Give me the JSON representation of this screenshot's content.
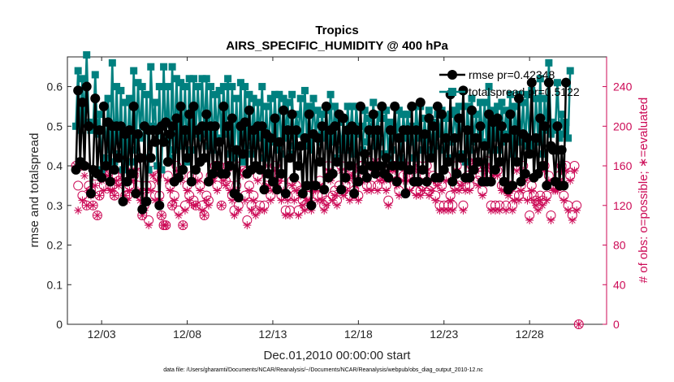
{
  "colors": {
    "rmse": "#000000",
    "totalspread": "#00807f",
    "obs": "#cc0a56",
    "axis": "#262626"
  },
  "chart_data": {
    "type": "line",
    "title_line1": "Tropics",
    "title_line2": "AIRS_SPECIFIC_HUMIDITY @ 400 hPa",
    "xlabel": "Dec.01,2010 00:00:00 start",
    "ylabel": "rmse and totalspread",
    "y2label": "# of obs: o=possible; ∗=evaluated",
    "x_range": [
      0,
      31.5
    ],
    "ylim": [
      0,
      0.675
    ],
    "y2lim": [
      0,
      270
    ],
    "x_ticks": [
      {
        "x": 2,
        "label": "12/03"
      },
      {
        "x": 7,
        "label": "12/08"
      },
      {
        "x": 12,
        "label": "12/13"
      },
      {
        "x": 17,
        "label": "12/18"
      },
      {
        "x": 22,
        "label": "12/23"
      },
      {
        "x": 27,
        "label": "12/28"
      }
    ],
    "y_ticks": [
      {
        "v": 0,
        "label": "0"
      },
      {
        "v": 0.1,
        "label": "0.1"
      },
      {
        "v": 0.2,
        "label": "0.2"
      },
      {
        "v": 0.3,
        "label": "0.3"
      },
      {
        "v": 0.4,
        "label": "0.4"
      },
      {
        "v": 0.5,
        "label": "0.5"
      },
      {
        "v": 0.6,
        "label": "0.6"
      }
    ],
    "y2_ticks": [
      {
        "v": 0,
        "label": "0"
      },
      {
        "v": 40,
        "label": "40"
      },
      {
        "v": 80,
        "label": "80"
      },
      {
        "v": 120,
        "label": "120"
      },
      {
        "v": 160,
        "label": "160"
      },
      {
        "v": 200,
        "label": "200"
      },
      {
        "v": 240,
        "label": "240"
      }
    ],
    "x_step": 0.125,
    "series": [
      {
        "name": "rmse",
        "legend": "rmse pr=0.42348",
        "values": [
          0.39,
          0.59,
          0.41,
          0.56,
          0.4,
          0.6,
          0.5,
          0.33,
          0.39,
          0.57,
          0.38,
          0.49,
          0.37,
          0.55,
          0.4,
          0.51,
          0.36,
          0.5,
          0.39,
          0.5,
          0.42,
          0.5,
          0.31,
          0.48,
          0.36,
          0.49,
          0.38,
          0.55,
          0.33,
          0.48,
          0.42,
          0.29,
          0.5,
          0.31,
          0.49,
          0.42,
          0.49,
          0.46,
          0.49,
          0.3,
          0.5,
          0.46,
          0.51,
          0.41,
          0.48,
          0.5,
          0.36,
          0.52,
          0.37,
          0.55,
          0.39,
          0.49,
          0.42,
          0.53,
          0.36,
          0.55,
          0.39,
          0.49,
          0.41,
          0.5,
          0.42,
          0.53,
          0.36,
          0.5,
          0.38,
          0.5,
          0.4,
          0.46,
          0.38,
          0.55,
          0.38,
          0.5,
          0.4,
          0.52,
          0.33,
          0.44,
          0.32,
          0.5,
          0.43,
          0.51,
          0.38,
          0.54,
          0.39,
          0.49,
          0.4,
          0.5,
          0.39,
          0.5,
          0.34,
          0.48,
          0.38,
          0.47,
          0.36,
          0.52,
          0.34,
          0.46,
          0.38,
          0.54,
          0.33,
          0.49,
          0.42,
          0.53,
          0.37,
          0.49,
          0.4,
          0.45,
          0.33,
          0.47,
          0.35,
          0.53,
          0.3,
          0.48,
          0.35,
          0.47,
          0.41,
          0.5,
          0.34,
          0.55,
          0.37,
          0.49,
          0.38,
          0.5,
          0.41,
          0.53,
          0.34,
          0.52,
          0.37,
          0.49,
          0.4,
          0.5,
          0.33,
          0.49,
          0.36,
          0.55,
          0.39,
          0.43,
          0.37,
          0.49,
          0.4,
          0.53,
          0.38,
          0.49,
          0.4,
          0.55,
          0.38,
          0.42,
          0.37,
          0.49,
          0.4,
          0.55,
          0.36,
          0.47,
          0.4,
          0.49,
          0.33,
          0.49,
          0.39,
          0.55,
          0.36,
          0.49,
          0.36,
          0.56,
          0.39,
          0.48,
          0.36,
          0.52,
          0.42,
          0.5,
          0.37,
          0.55,
          0.37,
          0.53,
          0.39,
          0.47,
          0.41,
          0.58,
          0.36,
          0.47,
          0.38,
          0.52,
          0.42,
          0.59,
          0.37,
          0.49,
          0.37,
          0.54,
          0.39,
          0.47,
          0.41,
          0.5,
          0.36,
          0.45,
          0.36,
          0.53,
          0.36,
          0.51,
          0.39,
          0.52,
          0.41,
          0.5,
          0.36,
          0.47,
          0.34,
          0.53,
          0.35,
          0.49,
          0.41,
          0.57,
          0.36,
          0.48,
          0.38,
          0.47,
          0.43,
          0.61,
          0.37,
          0.47,
          0.38,
          0.52,
          0.4,
          0.5,
          0.35,
          0.61,
          0.45,
          0.44,
          0.36,
          0.5,
          0.35,
          0.44,
          0.35,
          0.61
        ]
      },
      {
        "name": "totalspread",
        "legend": "totalspread pr=0.5122",
        "values": [
          0.5,
          0.64,
          0.49,
          0.62,
          0.51,
          0.68,
          0.51,
          0.49,
          0.49,
          0.63,
          0.48,
          0.53,
          0.39,
          0.55,
          0.42,
          0.57,
          0.44,
          0.66,
          0.41,
          0.6,
          0.43,
          0.59,
          0.39,
          0.56,
          0.41,
          0.57,
          0.41,
          0.64,
          0.44,
          0.61,
          0.47,
          0.6,
          0.42,
          0.58,
          0.39,
          0.65,
          0.5,
          0.56,
          0.4,
          0.6,
          0.39,
          0.65,
          0.46,
          0.6,
          0.42,
          0.65,
          0.44,
          0.62,
          0.46,
          0.61,
          0.45,
          0.6,
          0.41,
          0.62,
          0.44,
          0.62,
          0.48,
          0.6,
          0.47,
          0.62,
          0.48,
          0.62,
          0.45,
          0.6,
          0.44,
          0.58,
          0.47,
          0.59,
          0.47,
          0.6,
          0.48,
          0.62,
          0.43,
          0.6,
          0.42,
          0.57,
          0.43,
          0.61,
          0.41,
          0.6,
          0.45,
          0.58,
          0.43,
          0.57,
          0.45,
          0.56,
          0.47,
          0.6,
          0.42,
          0.55,
          0.43,
          0.57,
          0.46,
          0.58,
          0.44,
          0.58,
          0.43,
          0.57,
          0.47,
          0.56,
          0.43,
          0.58,
          0.45,
          0.53,
          0.48,
          0.57,
          0.45,
          0.59,
          0.45,
          0.55,
          0.44,
          0.57,
          0.47,
          0.54,
          0.46,
          0.53,
          0.47,
          0.54,
          0.45,
          0.58,
          0.46,
          0.55,
          0.42,
          0.51,
          0.44,
          0.52,
          0.44,
          0.55,
          0.46,
          0.55,
          0.43,
          0.55,
          0.48,
          0.5,
          0.44,
          0.54,
          0.46,
          0.52,
          0.48,
          0.56,
          0.45,
          0.53,
          0.46,
          0.52,
          0.43,
          0.54,
          0.42,
          0.51,
          0.44,
          0.55,
          0.47,
          0.54,
          0.42,
          0.53,
          0.47,
          0.53,
          0.46,
          0.5,
          0.42,
          0.55,
          0.47,
          0.55,
          0.44,
          0.52,
          0.44,
          0.54,
          0.44,
          0.51,
          0.45,
          0.53,
          0.48,
          0.54,
          0.44,
          0.52,
          0.42,
          0.53,
          0.46,
          0.54,
          0.47,
          0.55,
          0.43,
          0.59,
          0.41,
          0.55,
          0.44,
          0.57,
          0.46,
          0.53,
          0.47,
          0.56,
          0.46,
          0.56,
          0.45,
          0.6,
          0.44,
          0.54,
          0.47,
          0.55,
          0.44,
          0.56,
          0.46,
          0.54,
          0.48,
          0.58,
          0.43,
          0.55,
          0.47,
          0.58,
          0.46,
          0.56,
          0.45,
          0.58,
          0.46,
          0.59,
          0.45,
          0.57,
          0.46,
          0.62,
          0.43,
          0.57,
          0.49,
          0.66,
          0.48,
          0.51,
          0.49,
          0.61,
          0.47,
          0.53,
          0.48,
          0.51,
          0.47,
          0.64
        ]
      }
    ],
    "obs_possible": [
      160,
      140,
      160,
      130,
      160,
      120,
      140,
      135,
      120,
      150,
      110,
      130,
      150,
      140,
      160,
      155,
      140,
      140,
      130,
      150,
      145,
      160,
      150,
      130,
      130,
      140,
      160,
      150,
      160,
      140,
      130,
      110,
      120,
      140,
      105,
      140,
      155,
      130,
      150,
      130,
      110,
      100,
      100,
      150,
      140,
      120,
      130,
      160,
      115,
      150,
      100,
      120,
      140,
      130,
      150,
      125,
      120,
      150,
      140,
      120,
      110,
      130,
      125,
      150,
      150,
      160,
      140,
      160,
      120,
      150,
      145,
      160,
      140,
      130,
      115,
      140,
      120,
      160,
      155,
      130,
      105,
      140,
      120,
      130,
      115,
      150,
      120,
      160,
      120,
      140,
      145,
      130,
      140,
      160,
      145,
      150,
      130,
      140,
      115,
      130,
      115,
      145,
      130,
      140,
      115,
      135,
      125,
      120,
      130,
      130,
      120,
      140,
      140,
      130,
      145,
      130,
      120,
      125,
      160,
      150,
      130,
      135,
      125,
      140,
      160,
      135,
      140,
      150,
      130,
      155,
      135,
      145,
      130,
      160,
      160,
      150,
      140,
      165,
      140,
      160,
      160,
      140,
      150,
      165,
      150,
      140,
      125,
      160,
      150,
      160,
      145,
      135,
      165,
      150,
      160,
      150,
      140,
      160,
      150,
      135,
      160,
      135,
      140,
      150,
      160,
      135,
      140,
      150,
      130,
      145,
      120,
      140,
      120,
      150,
      120,
      130,
      120,
      140,
      160,
      140,
      145,
      120,
      140,
      150,
      140,
      160,
      170,
      160,
      145,
      150,
      135,
      160,
      165,
      150,
      120,
      155,
      120,
      155,
      120,
      140,
      140,
      120,
      135,
      140,
      120,
      130,
      160,
      130,
      140,
      160,
      150,
      130,
      110,
      140,
      130,
      125,
      120,
      130,
      125,
      160,
      130,
      150,
      110,
      140,
      140,
      140,
      150,
      160,
      130,
      160,
      120,
      150,
      110,
      160,
      120,
      0
    ],
    "obs_evaluated": [
      160,
      115,
      160,
      125,
      150,
      120,
      135,
      130,
      120,
      140,
      110,
      130,
      145,
      135,
      155,
      150,
      135,
      135,
      130,
      145,
      140,
      155,
      145,
      130,
      125,
      135,
      155,
      145,
      155,
      135,
      125,
      110,
      115,
      135,
      100,
      135,
      150,
      125,
      145,
      125,
      110,
      100,
      100,
      145,
      135,
      120,
      125,
      155,
      110,
      145,
      100,
      115,
      135,
      125,
      145,
      120,
      120,
      145,
      135,
      115,
      110,
      125,
      120,
      145,
      145,
      155,
      135,
      155,
      120,
      145,
      140,
      155,
      135,
      125,
      110,
      135,
      115,
      155,
      150,
      125,
      100,
      135,
      115,
      125,
      110,
      145,
      115,
      155,
      115,
      135,
      140,
      125,
      135,
      155,
      140,
      145,
      125,
      135,
      110,
      125,
      110,
      140,
      125,
      135,
      110,
      130,
      120,
      115,
      125,
      125,
      115,
      135,
      135,
      125,
      140,
      125,
      115,
      120,
      155,
      145,
      125,
      130,
      120,
      135,
      155,
      130,
      135,
      145,
      125,
      150,
      130,
      140,
      125,
      155,
      155,
      145,
      135,
      160,
      135,
      155,
      155,
      135,
      145,
      160,
      145,
      135,
      120,
      155,
      145,
      155,
      140,
      130,
      160,
      145,
      155,
      145,
      135,
      155,
      145,
      130,
      155,
      130,
      135,
      145,
      155,
      130,
      135,
      145,
      125,
      140,
      115,
      135,
      115,
      145,
      115,
      125,
      115,
      135,
      155,
      135,
      140,
      115,
      135,
      145,
      135,
      155,
      165,
      155,
      140,
      145,
      130,
      155,
      160,
      145,
      115,
      150,
      115,
      150,
      115,
      135,
      135,
      115,
      130,
      135,
      115,
      125,
      155,
      125,
      135,
      155,
      145,
      125,
      105,
      135,
      125,
      120,
      115,
      125,
      120,
      155,
      125,
      145,
      105,
      135,
      135,
      135,
      145,
      155,
      125,
      155,
      115,
      145,
      105,
      155,
      115,
      0
    ],
    "footer": "data file: /Users/gharamti/Documents/NCAR/Reanalysis/~/Documents/NCAR/Reanalysis/webpub/obs_diag_output_2010-12.nc"
  }
}
